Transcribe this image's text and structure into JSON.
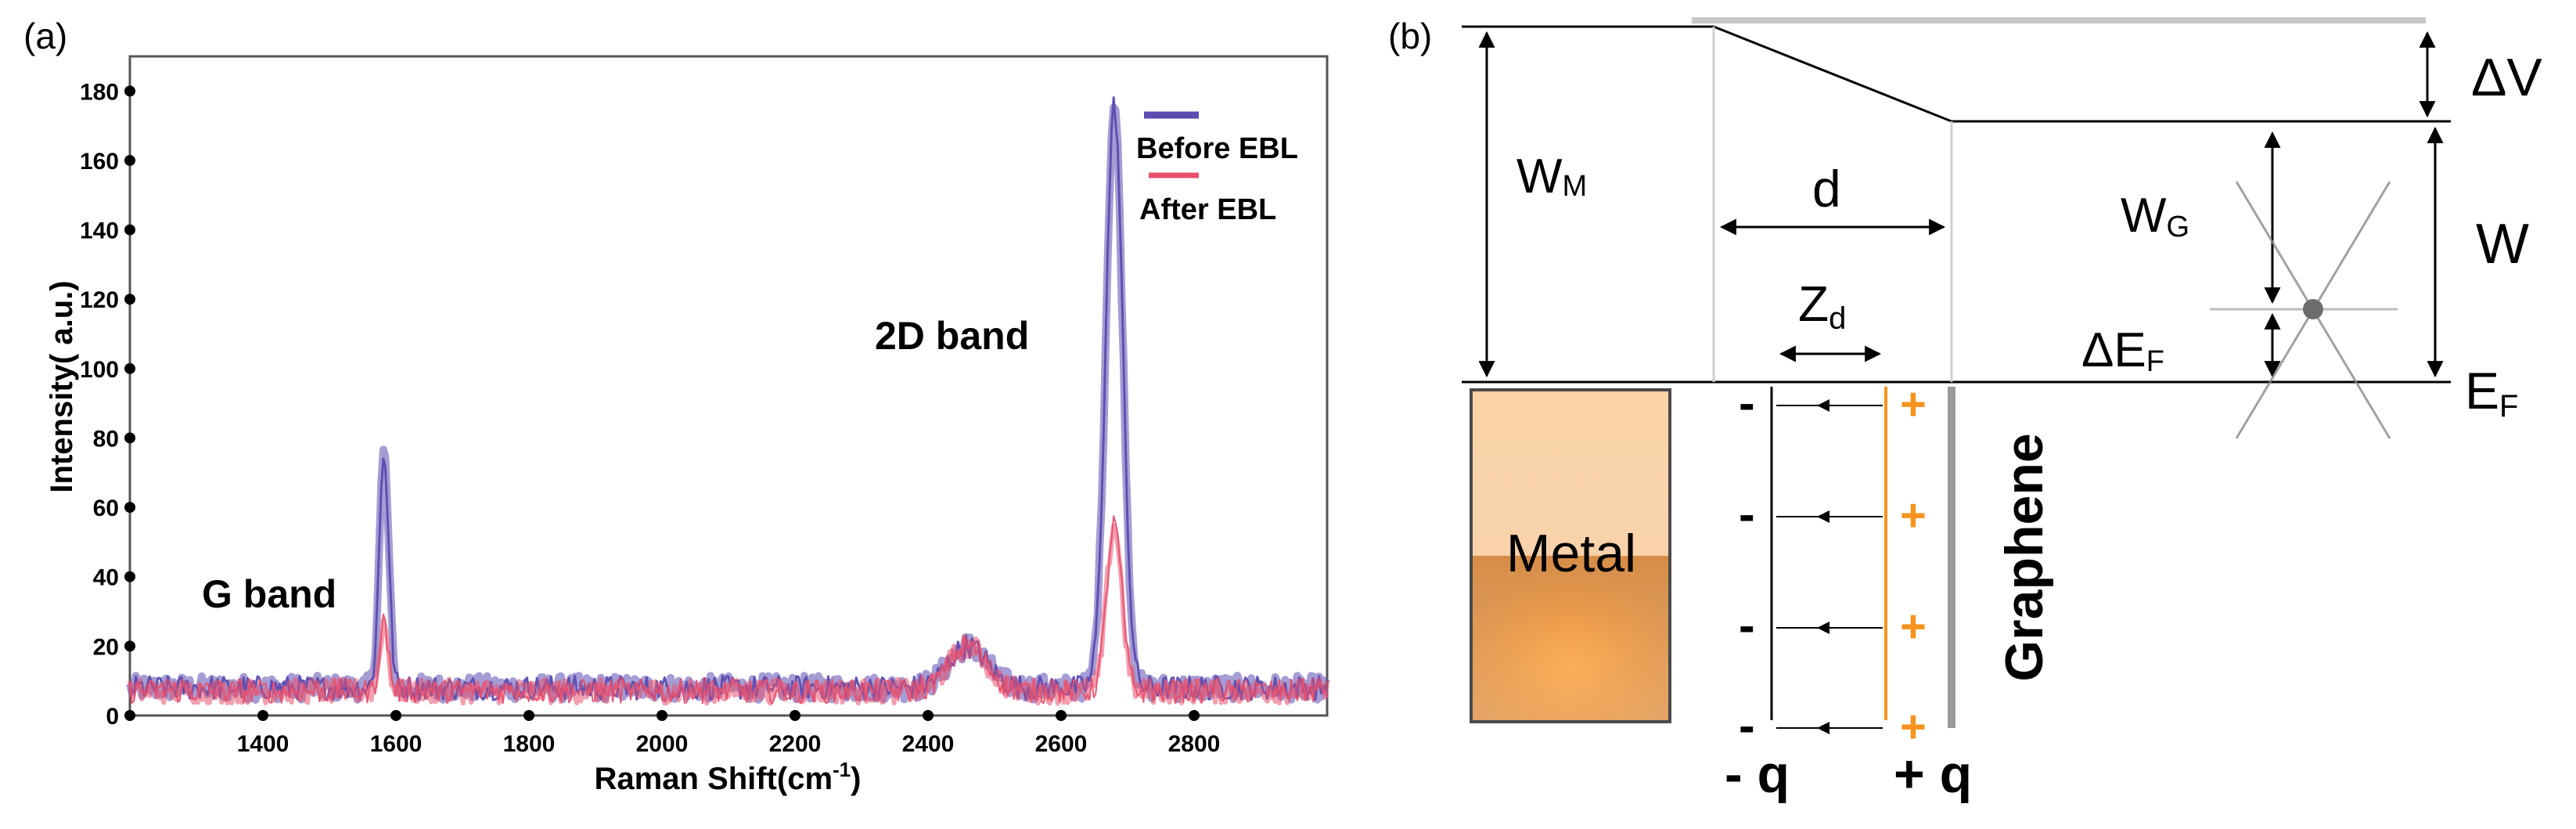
{
  "panel_a": {
    "label": "(a)",
    "chart_data": {
      "type": "line",
      "title": "",
      "xlabel_main": "Raman Shift(cm",
      "xlabel_sup": "-1",
      "xlabel_close": ")",
      "ylabel": "Intensity( a.u.)",
      "xlim": [
        1200,
        3000
      ],
      "ylim": [
        0,
        190
      ],
      "x_ticks": [
        1400,
        1600,
        1800,
        2000,
        2200,
        2400,
        2600,
        2800
      ],
      "x_tick_labels": [
        "1400",
        "1600",
        "1800",
        "2000",
        "2200",
        "2400",
        "2600",
        "2800"
      ],
      "y_ticks": [
        0,
        20,
        40,
        60,
        80,
        100,
        120,
        140,
        160,
        180
      ],
      "y_tick_labels": [
        "0",
        "20",
        "40",
        "60",
        "80",
        "100",
        "120",
        "140",
        "160",
        "180"
      ],
      "series": [
        {
          "name": "Before EBL",
          "color": "#5b4cb0",
          "baseline": 8,
          "peaks": [
            {
              "center": 1582,
              "height": 68,
              "width": 10
            },
            {
              "center": 2460,
              "height": 12,
              "width": 40
            },
            {
              "center": 2680,
              "height": 168,
              "width": 18
            }
          ]
        },
        {
          "name": "After EBL",
          "color": "#e8506e",
          "baseline": 7,
          "peaks": [
            {
              "center": 1582,
              "height": 20,
              "width": 9
            },
            {
              "center": 2460,
              "height": 13,
              "width": 40
            },
            {
              "center": 2680,
              "height": 48,
              "width": 16
            }
          ]
        }
      ],
      "annotations": [
        "G band",
        "2D band"
      ],
      "legend_position": "top-right"
    }
  },
  "panel_b": {
    "label": "(b)",
    "W_M": {
      "main": "W",
      "sub": "M"
    },
    "delta_V": "ΔV",
    "W": "W",
    "W_G": {
      "main": "W",
      "sub": "G"
    },
    "delta_E_F": {
      "main": "ΔE",
      "sub": "F"
    },
    "E_F": {
      "main": "E",
      "sub": "F"
    },
    "d": "d",
    "Z_d": {
      "main": "Z",
      "sub": "d"
    },
    "metal": "Metal",
    "graphene": "Graphene",
    "minus_sign": "-",
    "plus_sign": "+",
    "minus_q": "- q",
    "plus_q": "+ q",
    "colors": {
      "plus_charge": "#f7931e",
      "graphene_line": "#999999",
      "metal_dark": "#e07800",
      "metal_light": "#fbcc9a"
    }
  }
}
